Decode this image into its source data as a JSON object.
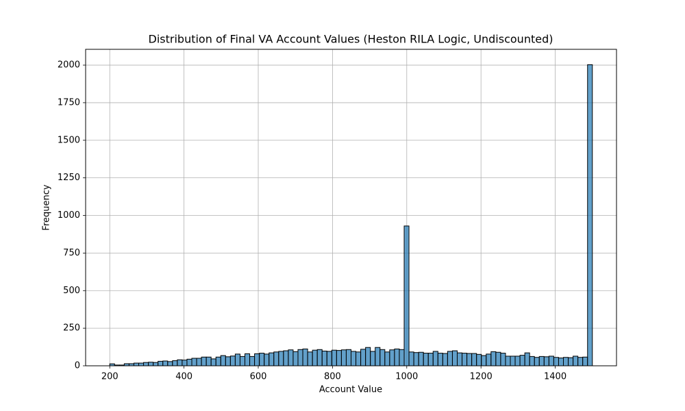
{
  "chart_data": {
    "type": "histogram",
    "title": "Distribution of Final VA Account Values (Heston RILA Logic, Undiscounted)",
    "x_label": "Account Value",
    "y_label": "Frequency",
    "bins": [
      200,
      213,
      226,
      239,
      252,
      265,
      278,
      291,
      304,
      317,
      330,
      343,
      356,
      369,
      382,
      395,
      408,
      421,
      434,
      447,
      460,
      473,
      486,
      499,
      512,
      525,
      538,
      551,
      564,
      577,
      590,
      603,
      616,
      629,
      642,
      655,
      668,
      681,
      694,
      707,
      720,
      733,
      746,
      759,
      772,
      785,
      798,
      811,
      824,
      837,
      850,
      863,
      876,
      889,
      902,
      915,
      928,
      941,
      954,
      967,
      980,
      993,
      1006,
      1019,
      1032,
      1045,
      1058,
      1071,
      1084,
      1097,
      1110,
      1123,
      1136,
      1149,
      1162,
      1175,
      1188,
      1201,
      1214,
      1227,
      1240,
      1253,
      1266,
      1279,
      1292,
      1305,
      1318,
      1331,
      1344,
      1357,
      1370,
      1383,
      1396,
      1409,
      1422,
      1435,
      1448,
      1461,
      1474,
      1487,
      1500
    ],
    "counts": [
      13,
      5,
      5,
      14,
      14,
      18,
      18,
      22,
      24,
      22,
      30,
      32,
      28,
      34,
      40,
      38,
      44,
      50,
      50,
      58,
      58,
      46,
      58,
      68,
      60,
      65,
      78,
      62,
      80,
      62,
      80,
      84,
      78,
      86,
      92,
      96,
      100,
      106,
      94,
      108,
      112,
      92,
      104,
      108,
      98,
      96,
      104,
      102,
      106,
      108,
      96,
      92,
      110,
      122,
      96,
      122,
      108,
      92,
      106,
      112,
      108,
      930,
      92,
      88,
      90,
      84,
      84,
      96,
      84,
      82,
      96,
      100,
      86,
      84,
      82,
      82,
      76,
      68,
      78,
      94,
      90,
      84,
      64,
      64,
      64,
      70,
      86,
      62,
      56,
      62,
      60,
      64,
      56,
      52,
      56,
      54,
      64,
      56,
      58,
      2003
    ],
    "color": "#1f77b4",
    "xlim": [
      135,
      1565
    ],
    "ylim": [
      0,
      2105
    ],
    "xticks": [
      200,
      400,
      600,
      800,
      1000,
      1200,
      1400
    ],
    "yticks": [
      0,
      250,
      500,
      750,
      1000,
      1250,
      1500,
      1750,
      2000
    ],
    "grid": true
  }
}
